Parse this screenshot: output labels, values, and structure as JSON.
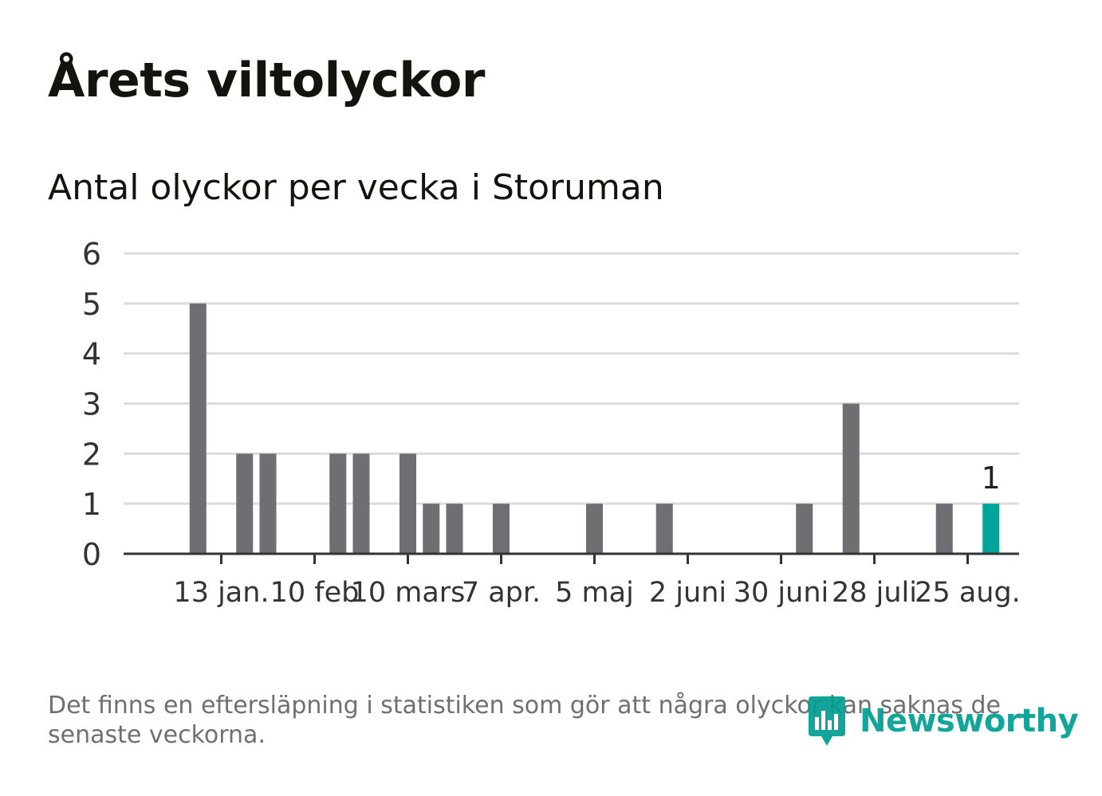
{
  "title": "Årets viltolyckor",
  "subtitle": "Antal olyckor per vecka i Storuman",
  "footnote": "Det finns en eftersläpning i statistiken som gör att några olyckor kan saknas de senaste veckorna.",
  "logo": {
    "text": "Newsworthy",
    "icon": "newsworthy-logo-icon",
    "color": "#009e91"
  },
  "chart_data": {
    "type": "bar",
    "xlabel": "",
    "ylabel": "",
    "ylim": [
      0,
      6
    ],
    "yticks": [
      "0",
      "1",
      "2",
      "3",
      "4",
      "5",
      "6"
    ],
    "xticks": [
      {
        "label": "13 jan.",
        "week": 3
      },
      {
        "label": "10 feb",
        "week": 7
      },
      {
        "label": "10 mars",
        "week": 11
      },
      {
        "label": "7 apr.",
        "week": 15
      },
      {
        "label": "5 maj",
        "week": 19
      },
      {
        "label": "2 juni",
        "week": 23
      },
      {
        "label": "30 juni",
        "week": 27
      },
      {
        "label": "28 juli",
        "week": 31
      },
      {
        "label": "25 aug.",
        "week": 35
      }
    ],
    "weeks": [
      1,
      2,
      3,
      4,
      5,
      6,
      7,
      8,
      9,
      10,
      11,
      12,
      13,
      14,
      15,
      16,
      17,
      18,
      19,
      20,
      21,
      22,
      23,
      24,
      25,
      26,
      27,
      28,
      29,
      30,
      31,
      32,
      33,
      34,
      35,
      36
    ],
    "values": [
      0,
      5,
      0,
      2,
      2,
      0,
      0,
      2,
      2,
      0,
      2,
      1,
      1,
      0,
      1,
      0,
      0,
      0,
      1,
      0,
      0,
      1,
      0,
      0,
      0,
      0,
      0,
      1,
      0,
      3,
      0,
      0,
      0,
      1,
      0,
      1
    ],
    "highlight": {
      "index": 35,
      "label": "1",
      "color": "#00a598"
    },
    "bar_color": "#6f6e72",
    "grid": true,
    "grid_color": "#dcdcdc",
    "axis_color": "#333333"
  }
}
